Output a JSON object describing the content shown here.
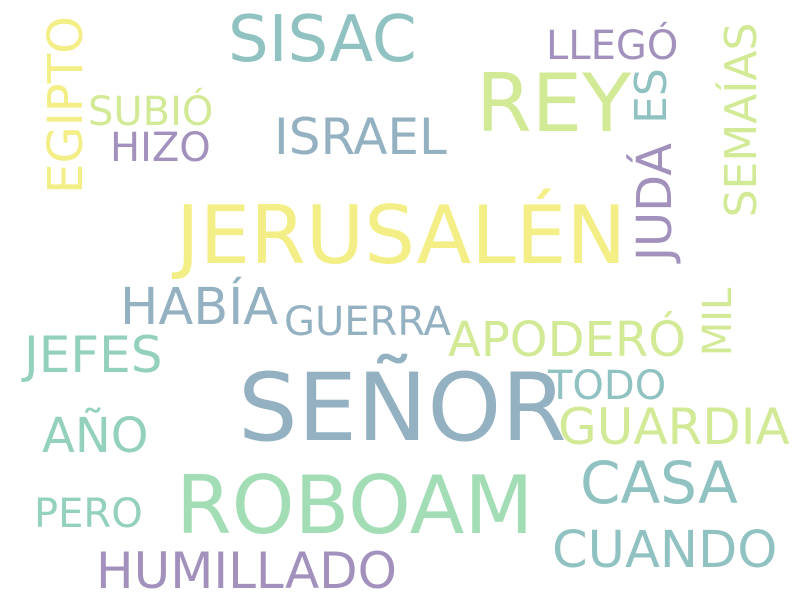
{
  "palette": {
    "yellow": "#f3ee85",
    "lime": "#d2ea96",
    "mint": "#a3ddb6",
    "seafoam": "#93d1bd",
    "teal": "#91c2c2",
    "steel": "#93b1c1",
    "purple": "#a391bd"
  },
  "words": {
    "senor": {
      "text": "SEÑOR",
      "color": "#93b1c1"
    },
    "jerusalen": {
      "text": "JERUSALÉN",
      "color": "#f3ee85"
    },
    "roboam": {
      "text": "ROBOAM",
      "color": "#a3ddb6"
    },
    "rey": {
      "text": "REY",
      "color": "#d2ea96"
    },
    "sisac": {
      "text": "SISAC",
      "color": "#91c2c2"
    },
    "casa": {
      "text": "CASA",
      "color": "#91c2c2"
    },
    "habia": {
      "text": "HABÍA",
      "color": "#93b1c1"
    },
    "guardia": {
      "text": "GUARDIA",
      "color": "#d2ea96"
    },
    "humillado": {
      "text": "HUMILLADO",
      "color": "#a391bd"
    },
    "cuando": {
      "text": "CUANDO",
      "color": "#91c2c2"
    },
    "apodero": {
      "text": "APODERÓ",
      "color": "#d2ea96"
    },
    "israel": {
      "text": "ISRAEL",
      "color": "#93b1c1"
    },
    "jefes": {
      "text": "JEFES",
      "color": "#93d1bd"
    },
    "ano": {
      "text": "AÑO",
      "color": "#93d1bd"
    },
    "egipto": {
      "text": "EGIPTO",
      "color": "#f3ee85"
    },
    "juda": {
      "text": "JUDÁ",
      "color": "#a391bd"
    },
    "semaias": {
      "text": "SEMAÍAS",
      "color": "#d2ea96"
    },
    "es": {
      "text": "ES",
      "color": "#91c2c2"
    },
    "guerra": {
      "text": "GUERRA",
      "color": "#93b1c1"
    },
    "subio": {
      "text": "SUBIÓ",
      "color": "#d2ea96"
    },
    "llego": {
      "text": "LLEGÓ",
      "color": "#a391bd"
    },
    "hizo": {
      "text": "HIZO",
      "color": "#a391bd"
    },
    "todo": {
      "text": "TODO",
      "color": "#91c2c2"
    },
    "pero": {
      "text": "PERO",
      "color": "#93d1bd"
    },
    "mil": {
      "text": "MIL",
      "color": "#d2ea96"
    }
  }
}
